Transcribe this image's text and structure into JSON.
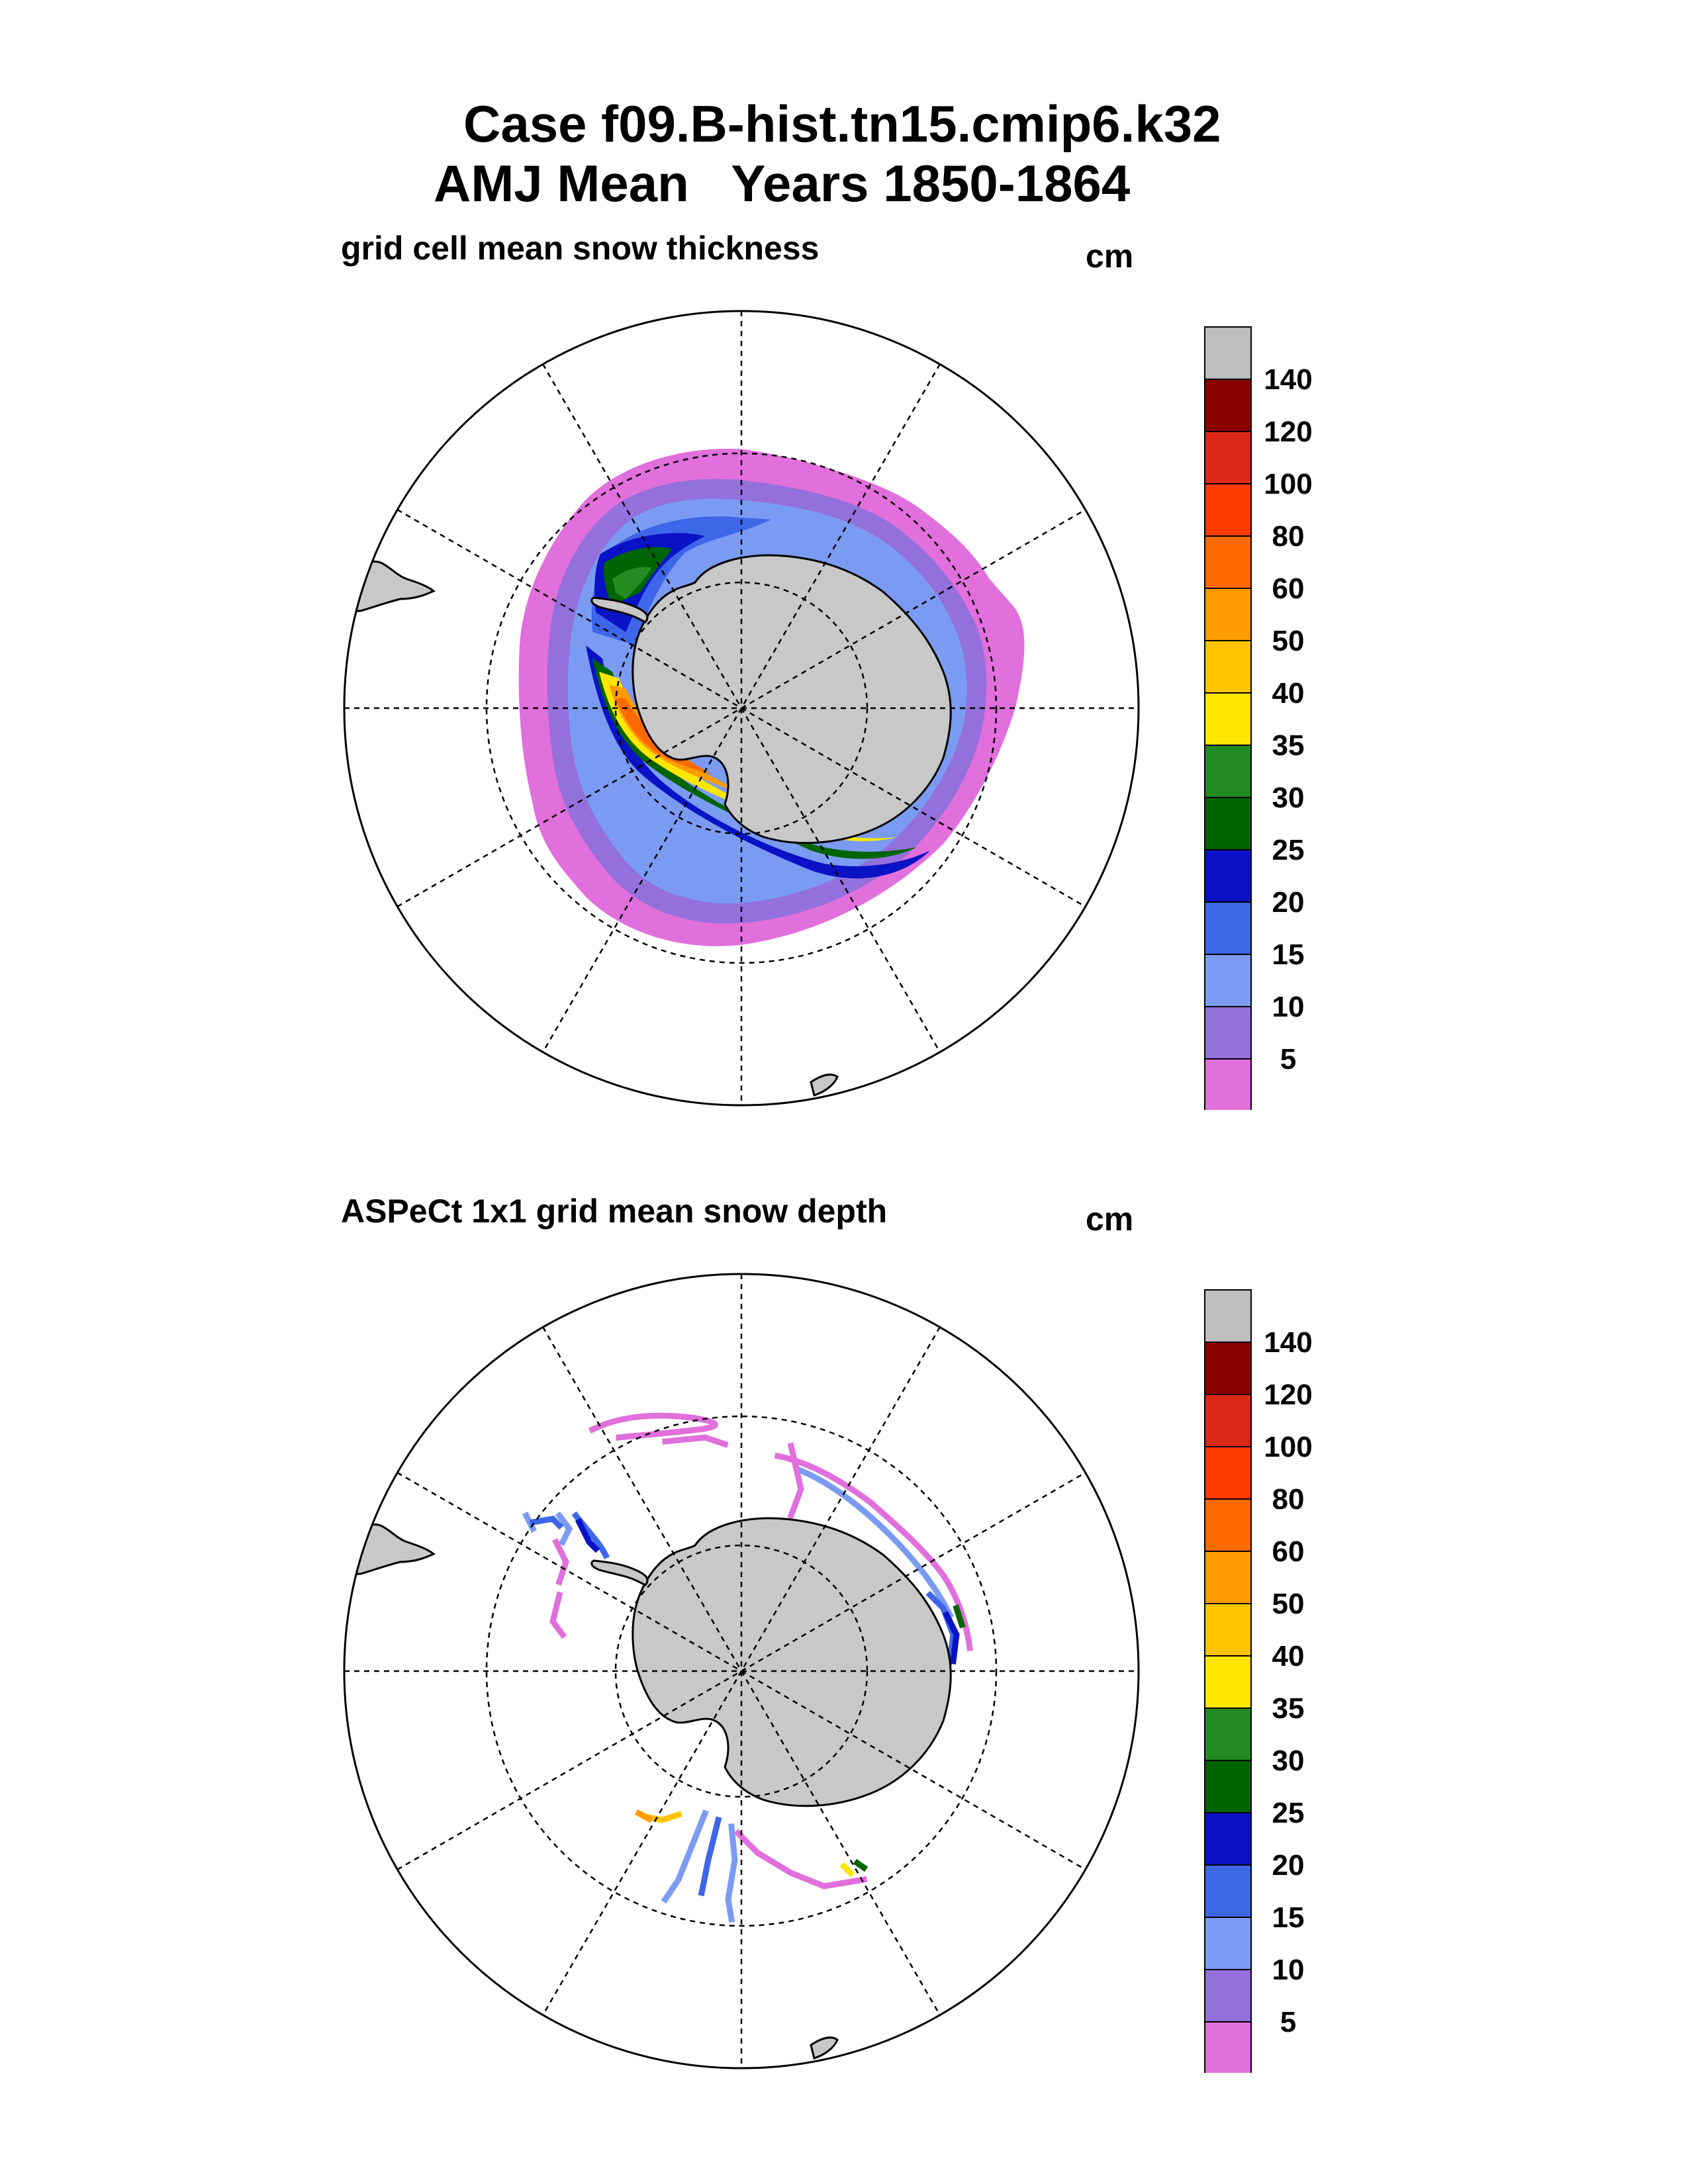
{
  "header": {
    "line1": "Case f09.B-hist.tn15.cmip6.k32",
    "line2": "AMJ Mean   Years 1850-1864"
  },
  "colors": {
    "land": "#c8c8c8",
    "colorbar": [
      "#e16fdc",
      "#9370db",
      "#7b9bf3",
      "#3e66e8",
      "#0a12c6",
      "#006400",
      "#238b22",
      "#ffe600",
      "#ffc400",
      "#ff9c00",
      "#ff6a00",
      "#ff3b00",
      "#dc2814",
      "#8b0000",
      "#bebebe"
    ]
  },
  "chart_data": [
    {
      "type": "map",
      "projection": "south polar stereographic",
      "title": "grid cell mean snow thickness",
      "units": "cm",
      "colorbar_levels": [
        "140",
        "120",
        "100",
        "80",
        "60",
        "50",
        "40",
        "35",
        "30",
        "25",
        "20",
        "15",
        "10",
        "5"
      ],
      "graticule": {
        "meridian_step_deg": 30,
        "latitude_circles": [
          -60,
          -70
        ]
      }
    },
    {
      "type": "map",
      "projection": "south polar stereographic",
      "title": "ASPeCt 1x1 grid mean snow depth",
      "units": "cm",
      "colorbar_levels": [
        "140",
        "120",
        "100",
        "80",
        "60",
        "50",
        "40",
        "35",
        "30",
        "25",
        "20",
        "15",
        "10",
        "5"
      ],
      "graticule": {
        "meridian_step_deg": 30,
        "latitude_circles": [
          -60,
          -70
        ]
      }
    }
  ]
}
